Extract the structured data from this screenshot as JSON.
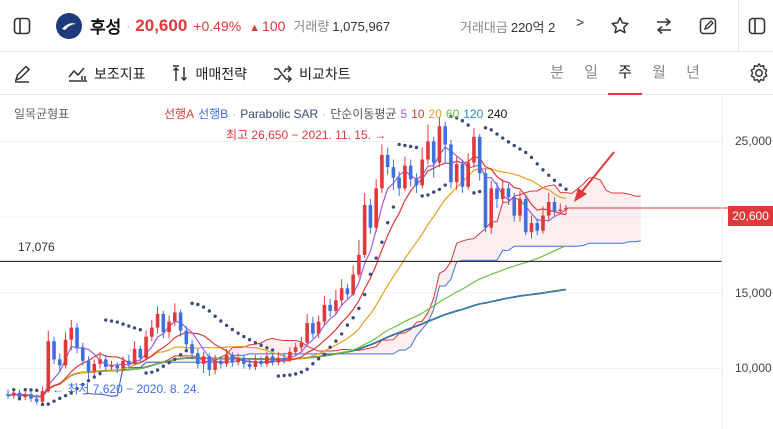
{
  "header": {
    "stock_name": "후성",
    "price": "20,600",
    "change_pct": "+0.49%",
    "change_symbol": "▲",
    "change_value": "100",
    "volume_label": "거래량",
    "volume_value": "1,075,967",
    "amount_label": "거래대금",
    "amount_value": "220억 2",
    "more": ">"
  },
  "toolbar": {
    "aux_indicator": "보조지표",
    "trade_strategy": "매매전략",
    "compare_chart": "비교차트",
    "periods": [
      "분",
      "일",
      "주",
      "월",
      "년"
    ],
    "active_period": "주"
  },
  "colors": {
    "up": "#e0383b",
    "down": "#3f6fe0",
    "accent": "#e0383b"
  },
  "chart_data": {
    "type": "candlestick",
    "period": "weekly",
    "ichimoku_label": "일목균형표",
    "indicator_labels": [
      {
        "text": "선행A",
        "color": "#e0383b"
      },
      {
        "text": "선행B",
        "color": "#3f6fe0"
      },
      {
        "text": "·",
        "color": "#aaaaaa"
      },
      {
        "text": "Parabolic SAR",
        "color": "#3b4a7a"
      },
      {
        "text": "·",
        "color": "#aaaaaa"
      },
      {
        "text": "단순이동평균",
        "color": "#555555"
      },
      {
        "text": "5",
        "color": "#a05ce0"
      },
      {
        "text": "10",
        "color": "#e0383b"
      },
      {
        "text": "20",
        "color": "#e6a020"
      },
      {
        "text": "60",
        "color": "#6cc040"
      },
      {
        "text": "120",
        "color": "#2c8cc8"
      },
      {
        "text": "240",
        "color": "#111111"
      }
    ],
    "high_annotation": "최고 26,650 − 2021. 11. 15. →",
    "low_annotation": "← 최저 7,620 − 2020. 8. 24.",
    "horizontal_line": "17,076",
    "horizontal_line_value": 17076,
    "current_price_label": "20,600",
    "current_price": 20600,
    "y_ticks": [
      {
        "label": "25,000",
        "value": 25000
      },
      {
        "label": "20,000",
        "value": 20000
      },
      {
        "label": "15,000",
        "value": 15000
      },
      {
        "label": "10,000",
        "value": 10000
      }
    ],
    "ylim": [
      6000,
      28000
    ],
    "candles": [
      [
        8300,
        8200,
        8600,
        8000
      ],
      [
        8200,
        8400,
        8700,
        8000
      ],
      [
        8400,
        8100,
        8600,
        7900
      ],
      [
        8100,
        8300,
        8500,
        7900
      ],
      [
        8300,
        8000,
        8500,
        7800
      ],
      [
        8000,
        7800,
        8300,
        7620
      ],
      [
        7800,
        8500,
        8800,
        7700
      ],
      [
        8500,
        11800,
        12500,
        8400
      ],
      [
        11800,
        10600,
        12100,
        10300
      ],
      [
        10600,
        10200,
        11000,
        9800
      ],
      [
        10200,
        11900,
        12400,
        10000
      ],
      [
        11900,
        12700,
        13200,
        11200
      ],
      [
        12700,
        11400,
        13000,
        11000
      ],
      [
        11400,
        10500,
        11700,
        10200
      ],
      [
        10500,
        9800,
        10800,
        9300
      ],
      [
        9800,
        10300,
        10600,
        9500
      ],
      [
        10300,
        10600,
        11100,
        10000
      ],
      [
        10600,
        10100,
        10900,
        9800
      ],
      [
        10100,
        10200,
        10500,
        9900
      ],
      [
        10200,
        10000,
        10400,
        9700
      ],
      [
        10000,
        10500,
        10800,
        9800
      ],
      [
        10500,
        10300,
        10900,
        10000
      ],
      [
        10300,
        11300,
        11800,
        10200
      ],
      [
        11300,
        10700,
        11500,
        10400
      ],
      [
        10700,
        12100,
        12500,
        10600
      ],
      [
        12100,
        12700,
        13200,
        11800
      ],
      [
        12700,
        13600,
        14100,
        12300
      ],
      [
        13600,
        12400,
        13800,
        12000
      ],
      [
        12400,
        13100,
        13500,
        12000
      ],
      [
        13100,
        13700,
        14300,
        12800
      ],
      [
        13700,
        12500,
        13900,
        12100
      ],
      [
        12500,
        11600,
        12800,
        11200
      ],
      [
        11600,
        11000,
        11900,
        10600
      ],
      [
        11000,
        10300,
        11300,
        10000
      ],
      [
        10300,
        10800,
        11100,
        9700
      ],
      [
        10800,
        9900,
        11000,
        9500
      ],
      [
        9900,
        10500,
        10900,
        9600
      ],
      [
        10500,
        10300,
        10800,
        10000
      ],
      [
        10300,
        10900,
        11300,
        10100
      ],
      [
        10900,
        10400,
        11100,
        10100
      ],
      [
        10400,
        10700,
        11000,
        10200
      ],
      [
        10700,
        10300,
        10900,
        10000
      ],
      [
        10300,
        10100,
        10600,
        9900
      ],
      [
        10100,
        10500,
        10900,
        9900
      ],
      [
        10500,
        10300,
        10800,
        10100
      ],
      [
        10300,
        10800,
        11100,
        10100
      ],
      [
        10800,
        10400,
        11000,
        10200
      ],
      [
        10400,
        10700,
        11100,
        10200
      ],
      [
        10700,
        10600,
        11000,
        10300
      ],
      [
        10600,
        11100,
        11400,
        10400
      ],
      [
        11100,
        11400,
        11700,
        10900
      ],
      [
        11400,
        11700,
        12100,
        11200
      ],
      [
        11700,
        13000,
        13600,
        11600
      ],
      [
        13000,
        12300,
        13400,
        12000
      ],
      [
        12300,
        13100,
        13500,
        12000
      ],
      [
        13100,
        14200,
        14800,
        12900
      ],
      [
        14200,
        13800,
        14600,
        13400
      ],
      [
        13800,
        14500,
        15200,
        13600
      ],
      [
        14500,
        15300,
        15900,
        14200
      ],
      [
        15300,
        14900,
        15600,
        14600
      ],
      [
        14900,
        16200,
        16800,
        14800
      ],
      [
        16200,
        17500,
        18500,
        16000
      ],
      [
        17500,
        20800,
        21600,
        17300
      ],
      [
        20800,
        19300,
        21200,
        18900
      ],
      [
        19300,
        21900,
        22500,
        19000
      ],
      [
        21900,
        24100,
        24800,
        21600
      ],
      [
        24100,
        23300,
        24600,
        22800
      ],
      [
        23300,
        22600,
        23800,
        21800
      ],
      [
        22600,
        21900,
        23000,
        21400
      ],
      [
        21900,
        23400,
        24000,
        21700
      ],
      [
        23400,
        22500,
        23800,
        22000
      ],
      [
        22500,
        22100,
        22900,
        21600
      ],
      [
        22100,
        23800,
        24600,
        21900
      ],
      [
        23800,
        25000,
        26100,
        23500
      ],
      [
        25000,
        23600,
        25300,
        22600
      ],
      [
        23600,
        26000,
        26650,
        23300
      ],
      [
        26000,
        24800,
        26300,
        23500
      ],
      [
        24800,
        22300,
        25100,
        21900
      ],
      [
        22300,
        23500,
        24000,
        21800
      ],
      [
        23500,
        22000,
        23800,
        21600
      ],
      [
        22000,
        23600,
        24200,
        21800
      ],
      [
        23600,
        25300,
        25900,
        23300
      ],
      [
        25300,
        22900,
        25500,
        22400
      ],
      [
        22900,
        19300,
        23200,
        19000
      ],
      [
        19300,
        21900,
        22400,
        18900
      ],
      [
        21900,
        21200,
        22300,
        20600
      ],
      [
        21200,
        21900,
        22500,
        20900
      ],
      [
        21900,
        21300,
        22200,
        20800
      ],
      [
        21300,
        20100,
        21600,
        19700
      ],
      [
        20100,
        21200,
        21700,
        19700
      ],
      [
        21200,
        19000,
        21500,
        18800
      ],
      [
        19000,
        19600,
        20100,
        18600
      ],
      [
        19600,
        19100,
        19900,
        18800
      ],
      [
        19100,
        20100,
        20700,
        18900
      ],
      [
        20100,
        21000,
        21600,
        19800
      ],
      [
        21000,
        20400,
        21300,
        20100
      ],
      [
        20400,
        20500,
        20900,
        20200
      ],
      [
        20500,
        20600,
        20800,
        20200
      ]
    ]
  }
}
